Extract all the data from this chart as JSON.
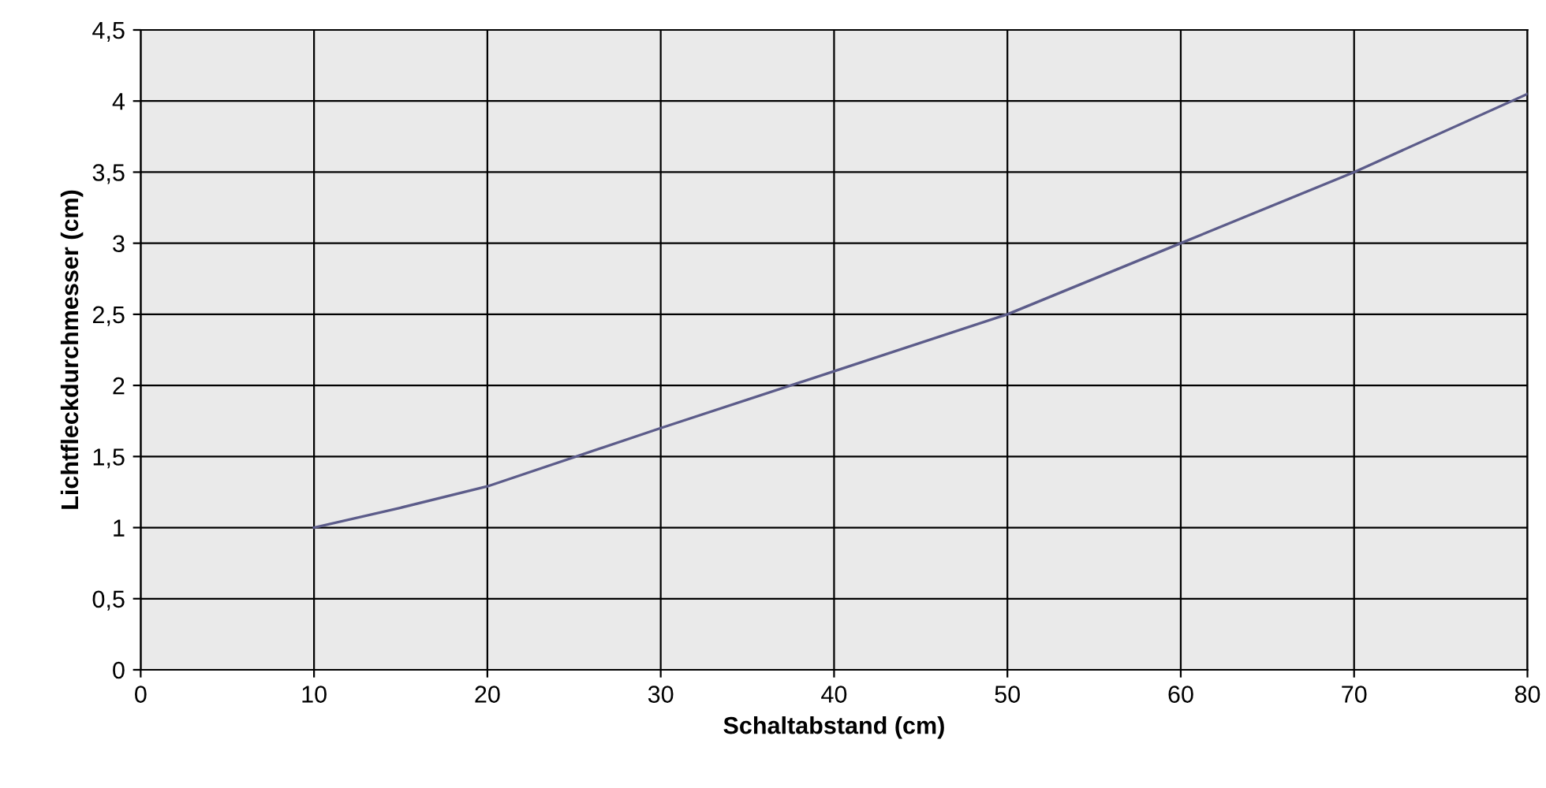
{
  "chart_data": {
    "type": "line",
    "xlabel": "Schaltabstand (cm)",
    "ylabel": "Lichtfleckdurchmesser (cm)",
    "x": [
      10,
      15,
      20,
      30,
      40,
      50,
      60,
      70,
      80
    ],
    "series": [
      {
        "color": "#5c5c8a",
        "values": [
          1.0,
          1.14,
          1.29,
          1.7,
          2.1,
          2.5,
          3.0,
          3.5,
          4.05
        ]
      }
    ],
    "xlim": [
      0,
      80
    ],
    "xticks": [
      0,
      10,
      20,
      30,
      40,
      50,
      60,
      70,
      80
    ],
    "ylim": [
      0,
      4.5
    ],
    "yticks": [
      0,
      {
        "value": 0.5,
        "label": "0,5"
      },
      1,
      {
        "value": 1.5,
        "label": "1,5"
      },
      2,
      {
        "value": 2.5,
        "label": "2,5"
      },
      3,
      {
        "value": 3.5,
        "label": "3,5"
      },
      4,
      {
        "value": 4.5,
        "label": "4,5"
      }
    ],
    "grid": true,
    "marker": "none",
    "line_style": "solid"
  }
}
